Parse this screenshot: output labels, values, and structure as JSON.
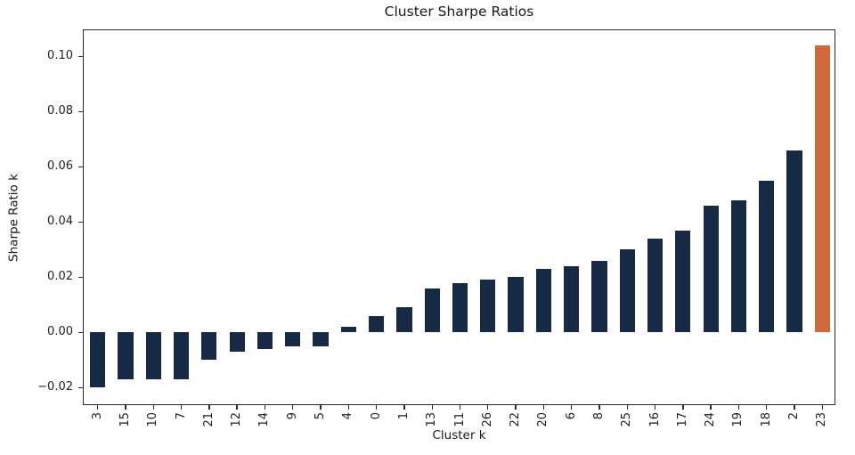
{
  "title": "Cluster Sharpe Ratios",
  "chart_data": {
    "type": "bar",
    "title": "Cluster Sharpe Ratios",
    "xlabel": "Cluster k",
    "ylabel": "Sharpe Ratio k",
    "categories": [
      "3",
      "15",
      "10",
      "7",
      "21",
      "12",
      "14",
      "9",
      "5",
      "4",
      "0",
      "1",
      "13",
      "11",
      "26",
      "22",
      "20",
      "6",
      "8",
      "25",
      "16",
      "17",
      "24",
      "19",
      "18",
      "2",
      "23"
    ],
    "values": [
      -0.02,
      -0.017,
      -0.017,
      -0.017,
      -0.01,
      -0.007,
      -0.006,
      -0.005,
      -0.005,
      0.002,
      0.006,
      0.009,
      0.016,
      0.018,
      0.019,
      0.02,
      0.023,
      0.024,
      0.026,
      0.03,
      0.034,
      0.037,
      0.046,
      0.048,
      0.055,
      0.066,
      0.104
    ],
    "yticks": [
      -0.02,
      0.0,
      0.02,
      0.04,
      0.06,
      0.08,
      0.1
    ],
    "ytick_labels": [
      "−0.02",
      "0.00",
      "0.02",
      "0.04",
      "0.06",
      "0.08",
      "0.10"
    ],
    "ylim": [
      -0.0267,
      0.1095
    ],
    "grid": false,
    "legend_position": "none",
    "bar_color": "#172a45",
    "highlight_color": "#d0693c",
    "highlight_category": "23",
    "xtick_rotation_degrees": 90
  }
}
